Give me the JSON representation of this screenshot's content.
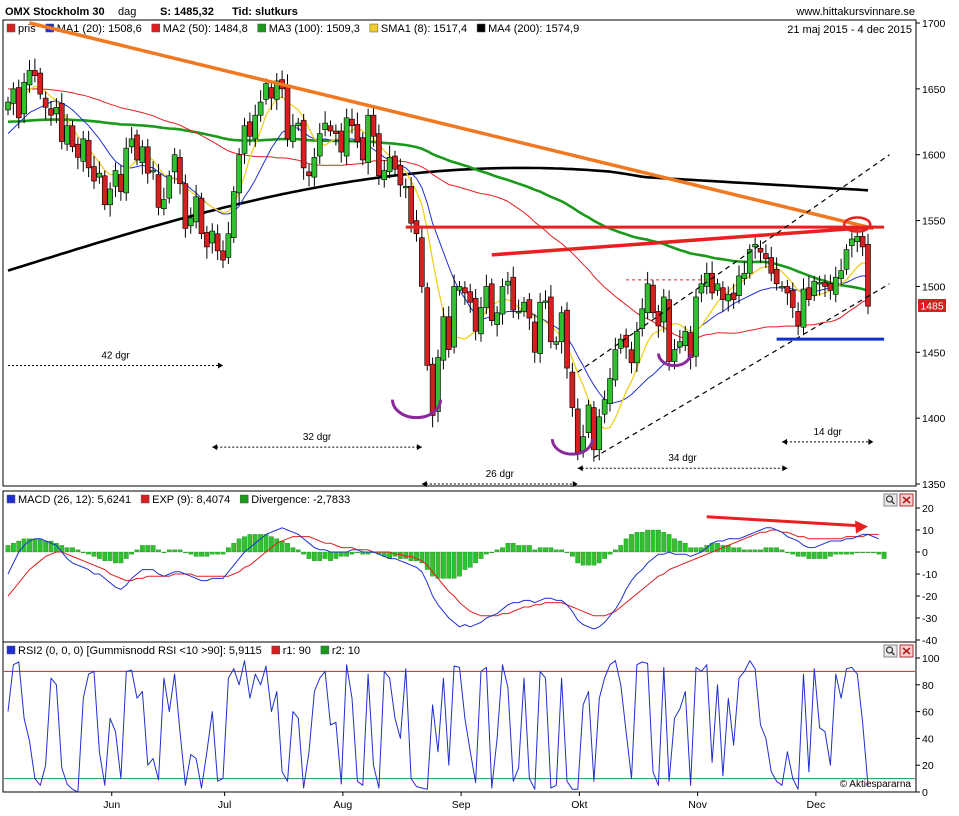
{
  "header": {
    "title": "OMX Stockholm 30",
    "period": "dag",
    "last_label": "S: 1485,32",
    "time_label": "Tid: slutkurs",
    "site": "www.hittakursvinnare.se",
    "date_range": "21 maj 2015 - 4 dec 2015"
  },
  "legend": [
    {
      "label": "pris",
      "color": "#d42020"
    },
    {
      "label": "MA1 (20): 1508,6",
      "color": "#2030d0"
    },
    {
      "label": "MA2 (50): 1484,8",
      "color": "#e02020"
    },
    {
      "label": "MA3 (100): 1509,3",
      "color": "#1a9a1a"
    },
    {
      "label": "SMA1 (8): 1517,4",
      "color": "#f0d020"
    },
    {
      "label": "MA4 (200): 1574,9",
      "color": "#000000"
    }
  ],
  "last_price_badge": "1485",
  "months": [
    "Jun",
    "Jul",
    "Aug",
    "Sep",
    "Okt",
    "Nov",
    "Dec"
  ],
  "annotations": [
    "42 dgr",
    "32 dgr",
    "26 dgr",
    "34 dgr",
    "14 dgr"
  ],
  "macd_legend": [
    {
      "label": "MACD (26, 12): 5,6241",
      "color": "#2030d0"
    },
    {
      "label": "EXP (9): 8,4074",
      "color": "#d42020"
    },
    {
      "label": "Divergence: -2,7833",
      "color": "#1a9a1a"
    }
  ],
  "rsi_legend": [
    {
      "label": "RSI2 (0, 0, 0) [Gummisnodd RSI <10 >90]: 5,9115",
      "color": "#2030d0"
    },
    {
      "label": "r1: 90",
      "color": "#d42020"
    },
    {
      "label": "r2: 10",
      "color": "#1a9a1a"
    }
  ],
  "credit": "© Aktiespararna",
  "panel_icons": [
    "magnifier-icon",
    "close-icon"
  ],
  "chart_data": [
    {
      "type": "candlestick",
      "title": "OMX Stockholm 30",
      "ylim": [
        1350,
        1700
      ],
      "yticks": [
        1350,
        1400,
        1450,
        1500,
        1550,
        1600,
        1650,
        1700
      ],
      "close": [
        1640,
        1650,
        1628,
        1655,
        1664,
        1660,
        1646,
        1636,
        1630,
        1636,
        1610,
        1622,
        1606,
        1598,
        1612,
        1590,
        1580,
        1586,
        1562,
        1574,
        1588,
        1572,
        1605,
        1612,
        1596,
        1606,
        1586,
        1588,
        1560,
        1566,
        1584,
        1600,
        1578,
        1544,
        1552,
        1568,
        1540,
        1530,
        1542,
        1527,
        1520,
        1540,
        1572,
        1600,
        1622,
        1614,
        1630,
        1640,
        1654,
        1643,
        1656,
        1650,
        1612,
        1622,
        1624,
        1590,
        1584,
        1598,
        1616,
        1624,
        1618,
        1616,
        1602,
        1628,
        1622,
        1610,
        1596,
        1630,
        1614,
        1584,
        1588,
        1598,
        1589,
        1577,
        1576,
        1548,
        1540,
        1500,
        1440,
        1402,
        1446,
        1477,
        1452,
        1500,
        1500,
        1495,
        1488,
        1466,
        1484,
        1500,
        1474,
        1480,
        1500,
        1504,
        1482,
        1481,
        1488,
        1476,
        1450,
        1488,
        1489,
        1458,
        1458,
        1480,
        1438,
        1408,
        1374,
        1386,
        1410,
        1376,
        1401,
        1414,
        1430,
        1452,
        1460,
        1454,
        1442,
        1466,
        1483,
        1502,
        1480,
        1470,
        1492,
        1443,
        1452,
        1458,
        1466,
        1446,
        1492,
        1502,
        1510,
        1495,
        1502,
        1490,
        1494,
        1490,
        1508,
        1510,
        1528,
        1532,
        1526,
        1521,
        1510,
        1502,
        1500,
        1495,
        1484,
        1470,
        1498,
        1490,
        1504,
        1503,
        1500,
        1497,
        1507,
        1512,
        1528,
        1536,
        1538,
        1530,
        1485
      ],
      "ma20": [
        1616,
        1620,
        1624,
        1628,
        1632,
        1634,
        1636,
        1638,
        1640,
        1641,
        1639,
        1637,
        1634,
        1630,
        1626,
        1622,
        1617,
        1612,
        1606,
        1600,
        1595,
        1592,
        1590,
        1590,
        1591,
        1592,
        1591,
        1590,
        1587,
        1584,
        1582,
        1582,
        1581,
        1578,
        1574,
        1571,
        1567,
        1563,
        1560,
        1557,
        1555,
        1555,
        1557,
        1561,
        1568,
        1574,
        1581,
        1589,
        1597,
        1605,
        1611,
        1617,
        1619,
        1621,
        1620,
        1617,
        1614,
        1612,
        1611,
        1612,
        1611,
        1611,
        1611,
        1612,
        1612,
        1611,
        1609,
        1607,
        1604,
        1601,
        1598,
        1596,
        1594,
        1592,
        1590,
        1586,
        1582,
        1575,
        1563,
        1548,
        1537,
        1526,
        1515,
        1505,
        1497,
        1491,
        1484,
        1479,
        1475,
        1476,
        1477,
        1478,
        1480,
        1481,
        1481,
        1481,
        1482,
        1481,
        1478,
        1476,
        1474,
        1471,
        1469,
        1466,
        1461,
        1455,
        1447,
        1440,
        1432,
        1425,
        1419,
        1414,
        1411,
        1412,
        1413,
        1415,
        1418,
        1422,
        1426,
        1430,
        1433,
        1437,
        1441,
        1445,
        1450,
        1455,
        1459,
        1462,
        1466,
        1470,
        1473,
        1476,
        1479,
        1481,
        1484,
        1487,
        1489,
        1491,
        1493,
        1495,
        1497,
        1498,
        1499,
        1499,
        1499,
        1499,
        1498,
        1497,
        1496,
        1495,
        1496,
        1497,
        1498,
        1499,
        1500,
        1502,
        1503,
        1505,
        1507,
        1508,
        1508
      ],
      "sma8": [
        1635,
        1640,
        1643,
        1646,
        1649,
        1652,
        1651,
        1648,
        1644,
        1641,
        1634,
        1627,
        1620,
        1614,
        1610,
        1605,
        1599,
        1594,
        1588,
        1585,
        1585,
        1584,
        1587,
        1592,
        1596,
        1600,
        1599,
        1596,
        1590,
        1585,
        1583,
        1582,
        1579,
        1575,
        1572,
        1569,
        1566,
        1563,
        1560,
        1558,
        1556,
        1557,
        1562,
        1572,
        1584,
        1598,
        1608,
        1618,
        1630,
        1637,
        1642,
        1644,
        1640,
        1637,
        1634,
        1628,
        1620,
        1612,
        1609,
        1607,
        1610,
        1612,
        1612,
        1615,
        1619,
        1620,
        1618,
        1614,
        1612,
        1608,
        1603,
        1599,
        1595,
        1591,
        1587,
        1580,
        1572,
        1562,
        1543,
        1520,
        1499,
        1480,
        1467,
        1462,
        1461,
        1460,
        1463,
        1466,
        1474,
        1482,
        1486,
        1488,
        1490,
        1490,
        1488,
        1484,
        1481,
        1480,
        1477,
        1476,
        1473,
        1470,
        1466,
        1462,
        1455,
        1445,
        1434,
        1425,
        1414,
        1404,
        1395,
        1392,
        1393,
        1400,
        1410,
        1420,
        1428,
        1438,
        1448,
        1458,
        1464,
        1466,
        1468,
        1470,
        1472,
        1471,
        1468,
        1466,
        1466,
        1470,
        1476,
        1482,
        1488,
        1493,
        1496,
        1500,
        1502,
        1505,
        1508,
        1511,
        1514,
        1515,
        1515,
        1514,
        1511,
        1507,
        1502,
        1497,
        1494,
        1493,
        1493,
        1494,
        1495,
        1497,
        1499,
        1502,
        1505,
        1510,
        1515,
        1518,
        1517
      ]
    },
    {
      "type": "line",
      "title": "MACD (26, 12)",
      "ylim": [
        -40,
        20
      ],
      "yticks": [
        -40,
        -30,
        -20,
        -10,
        0,
        10,
        20
      ],
      "series": [
        {
          "name": "MACD (26, 12)",
          "values": [
            -10,
            -5,
            0,
            3,
            5,
            6,
            6,
            5,
            4,
            3,
            0,
            -3,
            -5,
            -6,
            -7,
            -8,
            -10,
            -10,
            -12,
            -14,
            -16,
            -17,
            -15,
            -12,
            -10,
            -8,
            -8,
            -8,
            -10,
            -11,
            -10,
            -9,
            -9,
            -10,
            -11,
            -12,
            -13,
            -13,
            -12,
            -12,
            -12,
            -9,
            -6,
            -3,
            0,
            2,
            4,
            6,
            8,
            9,
            10,
            11,
            10,
            9,
            8,
            6,
            4,
            2,
            1,
            1,
            0,
            0,
            0,
            0,
            1,
            1,
            0,
            0,
            0,
            -1,
            -2,
            -3,
            -3,
            -4,
            -5,
            -6,
            -7,
            -9,
            -14,
            -20,
            -24,
            -27,
            -30,
            -32,
            -34,
            -33,
            -34,
            -33,
            -32,
            -30,
            -29,
            -28,
            -26,
            -24,
            -23,
            -23,
            -22,
            -22,
            -23,
            -22,
            -21,
            -21,
            -22,
            -22,
            -24,
            -27,
            -31,
            -33,
            -34,
            -35,
            -34,
            -32,
            -29,
            -26,
            -22,
            -17,
            -13,
            -10,
            -8,
            -5,
            -3,
            -1,
            -1,
            0,
            -1,
            -1,
            -1,
            -2,
            -1,
            0,
            2,
            4,
            5,
            5,
            6,
            6,
            6,
            7,
            8,
            9,
            10,
            11,
            11,
            10,
            9,
            7,
            6,
            5,
            3,
            2,
            2,
            3,
            4,
            5,
            5,
            5,
            6,
            6,
            7,
            8,
            8,
            7,
            6
          ]
        },
        {
          "name": "EXP (9)",
          "values": [
            -20,
            -17,
            -14,
            -11,
            -8,
            -6,
            -4,
            -2,
            -1,
            0,
            0,
            -1,
            -2,
            -3,
            -4,
            -5,
            -6,
            -7,
            -8,
            -10,
            -11,
            -12,
            -13,
            -13,
            -12,
            -12,
            -11,
            -11,
            -11,
            -11,
            -11,
            -10,
            -10,
            -10,
            -10,
            -11,
            -11,
            -11,
            -11,
            -11,
            -11,
            -11,
            -10,
            -9,
            -7,
            -6,
            -4,
            -2,
            0,
            2,
            4,
            5,
            6,
            7,
            7,
            7,
            7,
            6,
            5,
            4,
            4,
            3,
            2,
            2,
            2,
            1,
            1,
            1,
            0,
            0,
            0,
            0,
            -1,
            -1,
            -2,
            -2,
            -3,
            -4,
            -6,
            -9,
            -12,
            -15,
            -18,
            -20,
            -23,
            -25,
            -27,
            -28,
            -29,
            -29,
            -29,
            -29,
            -28,
            -28,
            -27,
            -26,
            -25,
            -25,
            -24,
            -24,
            -23,
            -23,
            -23,
            -23,
            -24,
            -25,
            -26,
            -27,
            -28,
            -29,
            -29,
            -29,
            -28,
            -27,
            -25,
            -23,
            -21,
            -19,
            -17,
            -15,
            -13,
            -11,
            -10,
            -8,
            -7,
            -6,
            -5,
            -4,
            -3,
            -2,
            -1,
            0,
            1,
            2,
            3,
            4,
            5,
            6,
            7,
            8,
            9,
            9,
            10,
            10,
            9,
            9,
            8,
            7,
            7,
            6,
            6,
            6,
            6,
            6,
            6,
            6,
            7,
            7,
            7,
            7,
            8,
            8,
            8
          ]
        },
        {
          "name": "Divergence",
          "values": [
            3,
            4,
            5,
            6,
            6,
            6,
            6,
            5,
            5,
            4,
            3,
            2,
            2,
            1,
            0,
            -1,
            -2,
            -3,
            -4,
            -4,
            -5,
            -5,
            -3,
            -1,
            1,
            3,
            3,
            3,
            1,
            0,
            1,
            1,
            1,
            0,
            -1,
            -2,
            -2,
            -2,
            -1,
            -1,
            -1,
            2,
            4,
            6,
            7,
            8,
            8,
            8,
            8,
            7,
            6,
            5,
            4,
            2,
            1,
            -1,
            -3,
            -4,
            -4,
            -3,
            -4,
            -3,
            -2,
            -2,
            -1,
            0,
            -1,
            -1,
            0,
            -1,
            -2,
            -3,
            -2,
            -3,
            -3,
            -4,
            -4,
            -5,
            -8,
            -11,
            -12,
            -12,
            -12,
            -12,
            -11,
            -8,
            -7,
            -5,
            -3,
            -1,
            0,
            1,
            2,
            4,
            4,
            3,
            3,
            3,
            1,
            2,
            2,
            2,
            1,
            1,
            0,
            -2,
            -5,
            -6,
            -6,
            -6,
            -5,
            -3,
            -1,
            1,
            3,
            6,
            8,
            9,
            9,
            10,
            10,
            10,
            9,
            8,
            6,
            5,
            4,
            2,
            2,
            2,
            3,
            4,
            4,
            3,
            3,
            2,
            2,
            1,
            1,
            1,
            1,
            2,
            2,
            2,
            1,
            0,
            -1,
            -2,
            -2,
            -3,
            -3,
            -3,
            -3,
            -2,
            -1,
            -1,
            -1,
            -1,
            0,
            0,
            0,
            0,
            -1,
            -3
          ]
        }
      ]
    },
    {
      "type": "line",
      "title": "RSI2 (0, 0, 0) [Gummisnodd RSI <10 >90]",
      "ylim": [
        0,
        100
      ],
      "yticks": [
        0,
        20,
        40,
        60,
        80,
        100
      ],
      "hlines": [
        {
          "name": "r1",
          "value": 90
        },
        {
          "name": "r2",
          "value": 10
        }
      ],
      "series": [
        {
          "name": "RSI2",
          "values": [
            60,
            95,
            97,
            55,
            38,
            10,
            5,
            20,
            85,
            80,
            18,
            6,
            2,
            0,
            70,
            88,
            90,
            30,
            5,
            55,
            45,
            10,
            90,
            91,
            70,
            75,
            20,
            25,
            9,
            85,
            60,
            88,
            45,
            5,
            28,
            25,
            3,
            30,
            60,
            8,
            10,
            85,
            92,
            80,
            98,
            70,
            88,
            80,
            94,
            60,
            75,
            15,
            8,
            60,
            55,
            3,
            30,
            75,
            85,
            90,
            50,
            52,
            6,
            95,
            70,
            8,
            5,
            88,
            20,
            3,
            90,
            85,
            55,
            40,
            92,
            10,
            4,
            3,
            2,
            65,
            30,
            85,
            20,
            94,
            93,
            55,
            30,
            7,
            90,
            93,
            3,
            40,
            95,
            78,
            8,
            18,
            85,
            10,
            2,
            90,
            85,
            3,
            5,
            85,
            8,
            2,
            2,
            65,
            75,
            8,
            70,
            85,
            95,
            98,
            80,
            45,
            10,
            95,
            97,
            96,
            15,
            5,
            93,
            8,
            55,
            62,
            75,
            5,
            93,
            90,
            95,
            22,
            80,
            12,
            70,
            35,
            85,
            90,
            98,
            92,
            50,
            40,
            15,
            8,
            5,
            30,
            10,
            2,
            88,
            15,
            92,
            48,
            45,
            20,
            88,
            70,
            92,
            93,
            88,
            52,
            5
          ]
        }
      ]
    }
  ]
}
